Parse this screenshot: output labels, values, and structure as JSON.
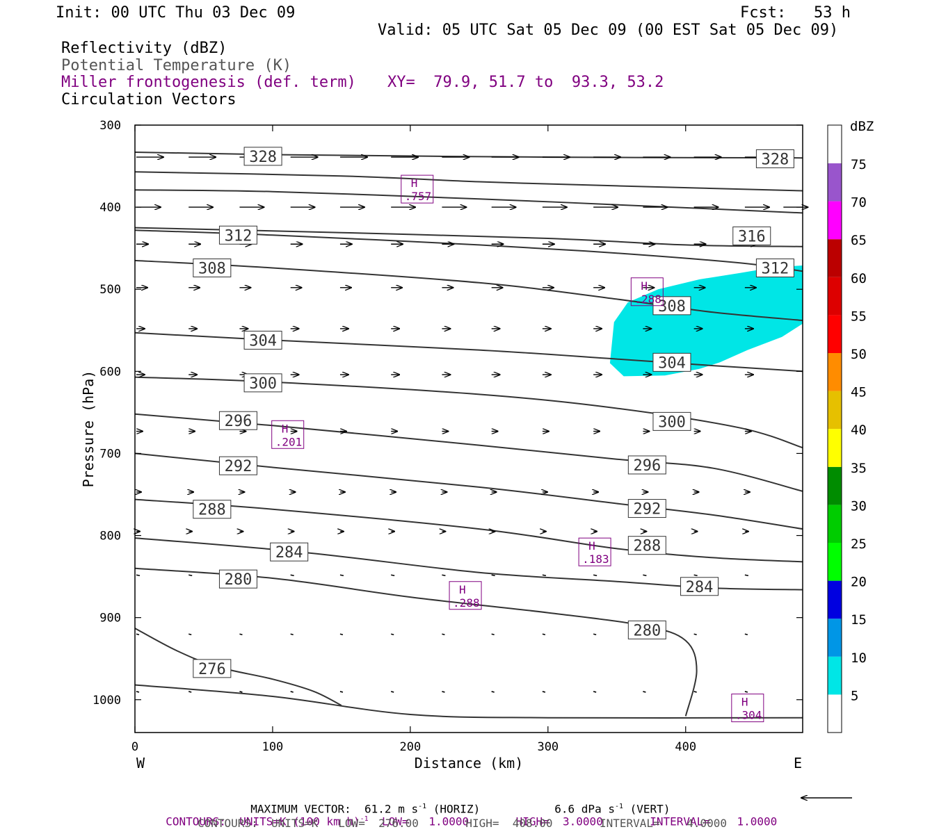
{
  "header": {
    "init": "Init: 00 UTC Thu 03 Dec 09",
    "fcst": "Fcst:   53 h",
    "valid": "Valid: 05 UTC Sat 05 Dec 09 (00 EST Sat 05 Dec 09)",
    "fields": [
      "Reflectivity (dBZ)",
      "Potential Temperature (K)",
      "Miller frontogenesis (def. term)",
      "Circulation Vectors"
    ],
    "xy": "XY=  79.9, 51.7 to  93.3, 53.2"
  },
  "colorbar": {
    "unit": "dBZ",
    "levels": [
      5,
      10,
      15,
      20,
      25,
      30,
      35,
      40,
      45,
      50,
      55,
      60,
      65,
      70,
      75
    ],
    "colors": [
      "#00e6e6",
      "#0096e6",
      "#0000e0",
      "#00ff00",
      "#00cc00",
      "#008c00",
      "#ffff00",
      "#e6c000",
      "#ff8c00",
      "#ff0000",
      "#dd0000",
      "#bb0000",
      "#ff00ff",
      "#9955cc",
      "#ffffff"
    ]
  },
  "chart_data": {
    "type": "cross-section",
    "xlabel": "Distance (km)",
    "ylabel": "Pressure (hPa)",
    "xlim": [
      0,
      485
    ],
    "ylim": [
      1040,
      300
    ],
    "x_ticks": [
      0,
      100,
      200,
      300,
      400
    ],
    "y_ticks": [
      300,
      400,
      500,
      600,
      700,
      800,
      900,
      1000
    ],
    "left_end": "W",
    "right_end": "E",
    "theta_contours": [
      {
        "label": "328",
        "points": [
          [
            0,
            333
          ],
          [
            100,
            336
          ],
          [
            300,
            339
          ],
          [
            485,
            340
          ]
        ],
        "labels_at": [
          [
            93,
            338
          ],
          [
            465,
            341
          ]
        ]
      },
      {
        "label": "",
        "points": [
          [
            0,
            357
          ],
          [
            150,
            362
          ],
          [
            250,
            369
          ],
          [
            350,
            374
          ],
          [
            485,
            380
          ]
        ],
        "labels_at": []
      },
      {
        "label": "",
        "points": [
          [
            0,
            379
          ],
          [
            100,
            381
          ],
          [
            250,
            390
          ],
          [
            350,
            397
          ],
          [
            485,
            407
          ]
        ],
        "labels_at": []
      },
      {
        "label": "316",
        "points": [
          [
            0,
            425
          ],
          [
            150,
            431
          ],
          [
            300,
            438
          ],
          [
            400,
            446
          ],
          [
            485,
            448
          ]
        ],
        "labels_at": [
          [
            448,
            435
          ]
        ]
      },
      {
        "label": "312",
        "points": [
          [
            0,
            428
          ],
          [
            100,
            434
          ],
          [
            250,
            446
          ],
          [
            350,
            456
          ],
          [
            440,
            468
          ],
          [
            485,
            478
          ]
        ],
        "labels_at": [
          [
            75,
            434
          ],
          [
            465,
            474
          ]
        ]
      },
      {
        "label": "308",
        "points": [
          [
            0,
            465
          ],
          [
            100,
            474
          ],
          [
            250,
            492
          ],
          [
            350,
            512
          ],
          [
            420,
            528
          ],
          [
            485,
            538
          ]
        ],
        "labels_at": [
          [
            56,
            474
          ],
          [
            390,
            520
          ]
        ]
      },
      {
        "label": "304",
        "points": [
          [
            0,
            553
          ],
          [
            100,
            562
          ],
          [
            250,
            574
          ],
          [
            350,
            585
          ],
          [
            420,
            593
          ],
          [
            485,
            600
          ]
        ],
        "labels_at": [
          [
            93,
            562
          ],
          [
            390,
            589
          ]
        ]
      },
      {
        "label": "300",
        "points": [
          [
            0,
            607
          ],
          [
            100,
            613
          ],
          [
            250,
            628
          ],
          [
            350,
            645
          ],
          [
            440,
            669
          ],
          [
            485,
            693
          ]
        ],
        "labels_at": [
          [
            93,
            614
          ],
          [
            390,
            661
          ]
        ]
      },
      {
        "label": "296",
        "points": [
          [
            0,
            652
          ],
          [
            100,
            666
          ],
          [
            250,
            690
          ],
          [
            350,
            707
          ],
          [
            420,
            718
          ],
          [
            485,
            746
          ]
        ],
        "labels_at": [
          [
            75,
            660
          ],
          [
            372,
            714
          ]
        ]
      },
      {
        "label": "292",
        "points": [
          [
            0,
            700
          ],
          [
            100,
            717
          ],
          [
            250,
            741
          ],
          [
            350,
            761
          ],
          [
            420,
            775
          ],
          [
            485,
            792
          ]
        ],
        "labels_at": [
          [
            75,
            715
          ],
          [
            372,
            767
          ]
        ]
      },
      {
        "label": "288",
        "points": [
          [
            0,
            756
          ],
          [
            100,
            768
          ],
          [
            250,
            792
          ],
          [
            350,
            816
          ],
          [
            420,
            827
          ],
          [
            485,
            832
          ]
        ],
        "labels_at": [
          [
            56,
            768
          ],
          [
            372,
            812
          ]
        ]
      },
      {
        "label": "284",
        "points": [
          [
            0,
            803
          ],
          [
            120,
            820
          ],
          [
            250,
            845
          ],
          [
            350,
            856
          ],
          [
            420,
            864
          ],
          [
            485,
            866
          ]
        ],
        "labels_at": [
          [
            112,
            820
          ],
          [
            410,
            862
          ]
        ]
      },
      {
        "label": "280",
        "points": [
          [
            0,
            840
          ],
          [
            100,
            852
          ],
          [
            200,
            875
          ],
          [
            300,
            894
          ],
          [
            370,
            910
          ],
          [
            400,
            928
          ],
          [
            408,
            965
          ],
          [
            400,
            1020
          ]
        ],
        "labels_at": [
          [
            75,
            853
          ],
          [
            372,
            915
          ]
        ]
      },
      {
        "label": "276",
        "points": [
          [
            0,
            913
          ],
          [
            30,
            940
          ],
          [
            60,
            960
          ],
          [
            100,
            975
          ],
          [
            130,
            990
          ],
          [
            150,
            1007
          ]
        ],
        "labels_at": [
          [
            56,
            962
          ]
        ]
      },
      {
        "label": "",
        "points": [
          [
            0,
            982
          ],
          [
            100,
            996
          ],
          [
            200,
            1018
          ],
          [
            300,
            1022
          ],
          [
            485,
            1022
          ]
        ],
        "labels_at": []
      }
    ],
    "frontogenesis_maxima": [
      {
        "label": "H",
        "value": ".757",
        "x": 205,
        "p": 378
      },
      {
        "label": "H",
        "value": ".288",
        "x": 372,
        "p": 503
      },
      {
        "label": "H",
        "value": ".201",
        "x": 111,
        "p": 677
      },
      {
        "label": "H",
        "value": ".183",
        "x": 334,
        "p": 820
      },
      {
        "label": "H",
        "value": ".288",
        "x": 240,
        "p": 873
      },
      {
        "label": "H",
        "value": ".304",
        "x": 445,
        "p": 1010
      }
    ],
    "reflectivity_region": {
      "dbz": 5,
      "outline": [
        [
          345,
          590
        ],
        [
          348,
          540
        ],
        [
          358,
          516
        ],
        [
          380,
          500
        ],
        [
          410,
          488
        ],
        [
          440,
          480
        ],
        [
          465,
          473
        ],
        [
          485,
          471
        ],
        [
          485,
          542
        ],
        [
          470,
          558
        ],
        [
          445,
          574
        ],
        [
          425,
          589
        ],
        [
          410,
          597
        ],
        [
          385,
          605
        ],
        [
          355,
          606
        ]
      ]
    },
    "vector_rows": [
      {
        "p": 339,
        "len": 39,
        "xs": [
          0,
          38,
          75,
          112,
          148,
          185,
          222,
          258,
          295,
          332,
          368,
          405,
          442
        ]
      },
      {
        "p": 400,
        "len": 35,
        "xs": [
          0,
          38,
          75,
          112,
          148,
          185,
          222,
          258,
          295,
          332,
          368,
          405,
          442,
          470
        ]
      },
      {
        "p": 445,
        "len": 17,
        "xs": [
          0,
          38,
          75,
          112,
          148,
          185,
          222,
          258,
          295,
          332,
          368,
          405,
          442
        ]
      },
      {
        "p": 498,
        "len": 16,
        "xs": [
          0,
          38,
          75,
          112,
          148,
          185,
          222,
          258,
          295,
          332,
          368,
          405,
          442
        ]
      },
      {
        "p": 548,
        "len": 12,
        "xs": [
          0,
          38,
          75,
          112,
          148,
          185,
          222,
          258,
          295,
          332,
          368,
          405,
          442
        ]
      },
      {
        "p": 604,
        "len": 12,
        "xs": [
          0,
          38,
          75,
          112,
          148,
          185,
          222,
          258,
          295,
          332,
          368,
          405,
          442
        ]
      },
      {
        "p": 673,
        "len": 9,
        "xs": [
          0,
          38,
          75,
          112,
          148,
          185,
          222,
          258,
          295,
          332,
          368,
          405,
          442
        ]
      },
      {
        "p": 747,
        "len": 7,
        "xs": [
          0,
          38,
          75,
          112,
          148,
          185,
          222,
          258,
          295,
          332,
          368,
          405,
          442
        ]
      },
      {
        "p": 795,
        "len": 5,
        "xs": [
          0,
          38,
          75,
          112,
          148,
          185,
          222,
          258,
          295,
          332,
          368,
          405,
          442
        ]
      },
      {
        "p": 848,
        "len": 3,
        "xs": [
          0,
          38,
          75,
          112,
          148,
          185,
          222,
          258,
          295,
          332,
          368,
          405,
          442
        ]
      },
      {
        "p": 920,
        "len": 2,
        "xs": [
          0,
          38,
          75,
          112,
          148,
          185,
          222,
          258,
          295,
          332,
          368,
          405,
          442
        ]
      },
      {
        "p": 990,
        "len": 2,
        "xs": [
          0,
          38,
          75,
          112,
          148,
          185,
          222,
          258,
          295,
          332,
          368,
          405,
          442
        ]
      }
    ]
  },
  "footer": {
    "max_vector": "MAXIMUM VECTOR:  61.2 m s",
    "horiz": " (HORIZ)",
    "vert": "6.6 dPa s",
    "vert_tail": " (VERT)",
    "sup": "-1",
    "contours1_a": "CONTOURS:  UNITS=K (100 km h)",
    "contours1_b": "  LOW=   1.0000       HIGH=  3.0000       INTERVAL=    1.0000",
    "contours2": "CONTOURS:  UNITS=K   LOW=  276.00       HIGH=  408.00       INTERVAL=    4.0000"
  }
}
